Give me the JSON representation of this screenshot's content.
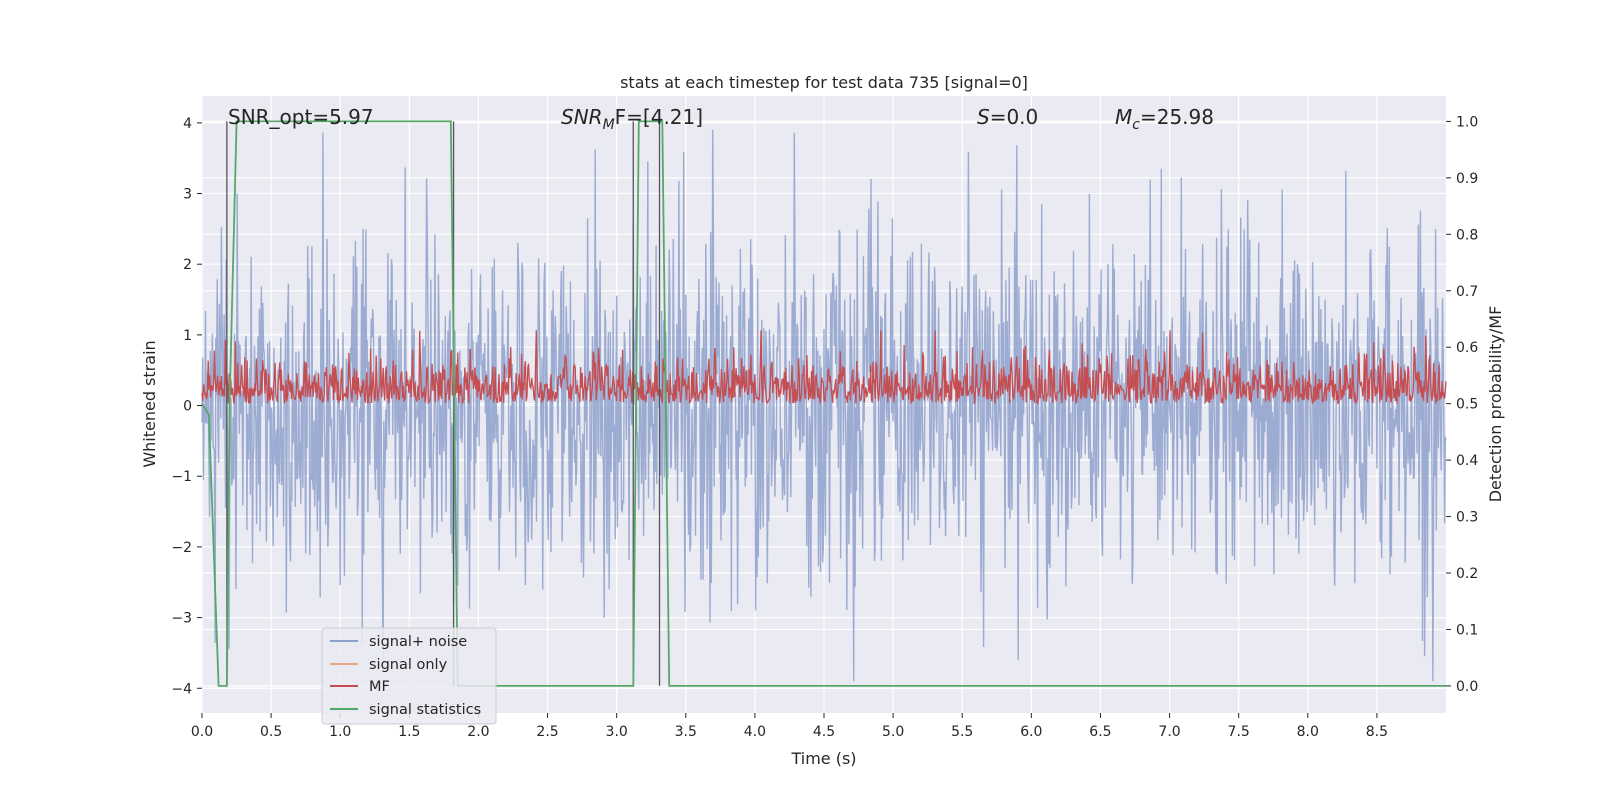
{
  "chart_data": {
    "type": "line",
    "title": "stats at each timestep for test data 735 [signal=0]",
    "xlabel": "Time (s)",
    "ylabel_left": "Whitened strain",
    "ylabel_right": "Detection probability/MF",
    "xlim": [
      0,
      9
    ],
    "ylim_left": [
      -4.35,
      4.38
    ],
    "ylim_right": [
      -0.048,
      1.045
    ],
    "x_ticks": [
      0.0,
      0.5,
      1.0,
      1.5,
      2.0,
      2.5,
      3.0,
      3.5,
      4.0,
      4.5,
      5.0,
      5.5,
      6.0,
      6.5,
      7.0,
      7.5,
      8.0,
      8.5
    ],
    "x_tick_labels": [
      "0.0",
      "0.5",
      "1.0",
      "1.5",
      "2.0",
      "2.5",
      "3.0",
      "3.5",
      "4.0",
      "4.5",
      "5.0",
      "5.5",
      "6.0",
      "6.5",
      "7.0",
      "7.5",
      "8.0",
      "8.5"
    ],
    "left_ticks": [
      -4,
      -3,
      -2,
      -1,
      0,
      1,
      2,
      3,
      4
    ],
    "left_tick_labels": [
      "−4",
      "−3",
      "−2",
      "−1",
      "0",
      "1",
      "2",
      "3",
      "4"
    ],
    "right_ticks": [
      0.0,
      0.1,
      0.2,
      0.3,
      0.4,
      0.5,
      0.6,
      0.7,
      0.8,
      0.9,
      1.0
    ],
    "right_tick_labels": [
      "0.0",
      "0.1",
      "0.2",
      "0.3",
      "0.4",
      "0.5",
      "0.6",
      "0.7",
      "0.8",
      "0.9",
      "1.0"
    ],
    "grid": true,
    "legend_position": "lower-left",
    "series": [
      {
        "name": "signal+ noise",
        "axis": "left",
        "color": "#8da0cb",
        "description_range": [
          -3.9,
          3.9
        ],
        "sample_rate_hz": 200,
        "typical_amplitude": 1.2
      },
      {
        "name": "signal only",
        "axis": "left",
        "color": "#e9a48a",
        "x": [],
        "y": []
      },
      {
        "name": "MF",
        "axis": "right",
        "color": "#c44e52",
        "baseline": 0.5,
        "range": [
          0.5,
          0.63
        ]
      },
      {
        "name": "signal statistics",
        "axis": "right",
        "color": "#55a868",
        "x": [
          0.0,
          0.05,
          0.12,
          0.18,
          0.2,
          0.25,
          1.8,
          1.85,
          3.12,
          3.16,
          3.33,
          3.38,
          9.0
        ],
        "y": [
          0.5,
          0.48,
          0.0,
          0.0,
          0.5,
          1.0,
          1.0,
          0.0,
          0.0,
          1.0,
          1.0,
          0.0,
          0.0
        ]
      }
    ],
    "vertical_markers": {
      "color": "#555555",
      "x": [
        0.18,
        1.82,
        3.12,
        3.31
      ]
    },
    "annotations": [
      {
        "text": "SNR_opt=5.97",
        "x": 0.2,
        "y": 4.2
      },
      {
        "text_main": "SNR",
        "text_sub": "M",
        "text_rest": "F=[4.21]",
        "x": 2.6,
        "y": 4.2
      },
      {
        "text_main": "S",
        "text_rest": "=0.0",
        "x": 5.6,
        "y": 4.2
      },
      {
        "text_main": "M",
        "text_sub": "c",
        "text_rest": "=25.98",
        "x": 6.6,
        "y": 4.2
      }
    ]
  }
}
